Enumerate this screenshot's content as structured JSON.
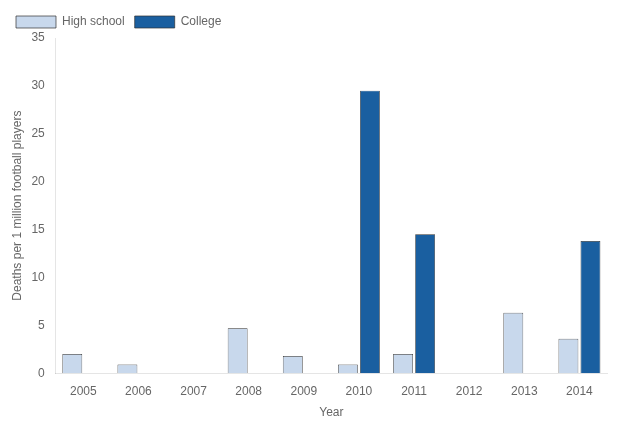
{
  "chart_data": {
    "type": "bar",
    "categories": [
      "2005",
      "2006",
      "2007",
      "2008",
      "2009",
      "2010",
      "2011",
      "2012",
      "2013",
      "2014"
    ],
    "series": [
      {
        "name": "High school",
        "color": "#c8d8ec",
        "values": [
          2.0,
          0.9,
          0.0,
          4.7,
          1.8,
          0.9,
          2.0,
          0.0,
          6.3,
          3.6
        ]
      },
      {
        "name": "College",
        "color": "#1a5fa0",
        "values": [
          0.0,
          0.0,
          0.0,
          0.0,
          0.0,
          29.5,
          14.5,
          0.0,
          0.0,
          13.8
        ]
      }
    ],
    "xlabel": "Year",
    "ylabel": "Deaths per 1 million football players",
    "ylim": [
      0,
      35
    ],
    "yticks": [
      0,
      5,
      10,
      15,
      20,
      25,
      30,
      35
    ],
    "grid": false,
    "legend": "upper left"
  }
}
